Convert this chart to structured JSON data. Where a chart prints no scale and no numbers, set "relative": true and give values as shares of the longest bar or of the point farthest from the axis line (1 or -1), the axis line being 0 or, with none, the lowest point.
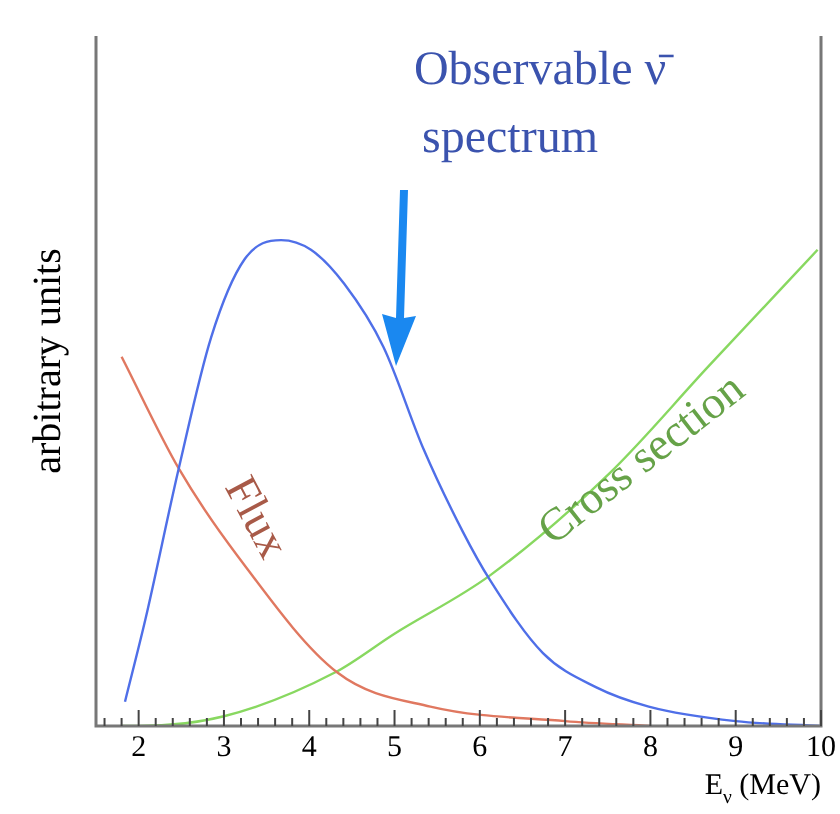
{
  "chart_data": {
    "type": "line",
    "relative": true,
    "xlabel": "E$_{ν}$ (MeV)",
    "ylabel": "arbitrary units",
    "xlim": [
      1.5,
      10
    ],
    "xticks": [
      {
        "value": 1.6,
        "label": null
      },
      {
        "value": 1.8,
        "label": null
      },
      2,
      {
        "value": 2.2,
        "label": null
      },
      {
        "value": 2.4,
        "label": null
      },
      {
        "value": 2.6,
        "label": null
      },
      {
        "value": 2.8,
        "label": null
      },
      3,
      {
        "value": 3.2,
        "label": null
      },
      {
        "value": 3.4,
        "label": null
      },
      {
        "value": 3.6,
        "label": null
      },
      {
        "value": 3.8,
        "label": null
      },
      4,
      {
        "value": 4.2,
        "label": null
      },
      {
        "value": 4.4,
        "label": null
      },
      {
        "value": 4.6,
        "label": null
      },
      {
        "value": 4.8,
        "label": null
      },
      5,
      {
        "value": 5.2,
        "label": null
      },
      {
        "value": 5.4,
        "label": null
      },
      {
        "value": 5.6,
        "label": null
      },
      {
        "value": 5.8,
        "label": null
      },
      6,
      {
        "value": 6.2,
        "label": null
      },
      {
        "value": 6.4,
        "label": null
      },
      {
        "value": 6.6,
        "label": null
      },
      {
        "value": 6.8,
        "label": null
      },
      7,
      {
        "value": 7.2,
        "label": null
      },
      {
        "value": 7.4,
        "label": null
      },
      {
        "value": 7.6,
        "label": null
      },
      {
        "value": 7.8,
        "label": null
      },
      8,
      {
        "value": 8.2,
        "label": null
      },
      {
        "value": 8.4,
        "label": null
      },
      {
        "value": 8.6,
        "label": null
      },
      {
        "value": 8.8,
        "label": null
      },
      9,
      {
        "value": 9.2,
        "label": null
      },
      {
        "value": 9.4,
        "label": null
      },
      {
        "value": 9.6,
        "label": null
      },
      {
        "value": 9.8,
        "label": null
      },
      10
    ],
    "grid": false,
    "legend": false,
    "marker": "none",
    "line_style": "solid",
    "series": [
      {
        "name": "Observable ν̄ spectrum",
        "color": "#4f6fe8",
        "x": [
          1.84,
          2.08,
          2.47,
          2.85,
          3.24,
          3.67,
          4.02,
          4.41,
          4.87,
          5.34,
          5.8,
          6.12,
          6.74,
          7.36,
          7.98,
          9,
          10
        ],
        "values": [
          0.05,
          0.22,
          0.53,
          0.8,
          0.96,
          1,
          0.98,
          0.91,
          0.78,
          0.57,
          0.4,
          0.3,
          0.15,
          0.08,
          0.04,
          0.01,
          0
        ]
      },
      {
        "name": "Flux",
        "color": "#e07860",
        "x": [
          1.8,
          2.47,
          3.16,
          4.33,
          5.42,
          7,
          8
        ],
        "values": [
          0.76,
          0.53,
          0.35,
          0.11,
          0.04,
          0.01,
          0
        ]
      },
      {
        "name": "Cross section",
        "color": "#88d860",
        "x": [
          1.8,
          2,
          3,
          4.3,
          5,
          6.12,
          7.52,
          8.68,
          9.96
        ],
        "values": [
          0,
          0,
          0.02,
          0.11,
          0.19,
          0.31,
          0.52,
          0.74,
          0.98
        ]
      }
    ]
  }
}
